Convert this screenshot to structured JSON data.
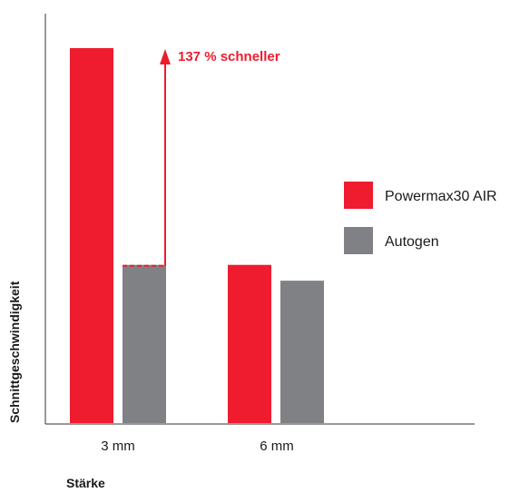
{
  "chart_data": {
    "type": "bar",
    "title": "",
    "xlabel": "Stärke",
    "ylabel": "Schnittgeschwindigkeit",
    "categories": [
      "3 mm",
      "6 mm"
    ],
    "series": [
      {
        "name": "Powermax30 AIR",
        "color": "#ee1c2e",
        "values": [
          2.37,
          1.0
        ]
      },
      {
        "name": "Autogen",
        "color": "#808184",
        "values": [
          1.0,
          0.9
        ]
      }
    ],
    "ylim": [
      0,
      2.6
    ],
    "grid": false,
    "legend_position": "right",
    "annotation": {
      "text": "137 % schneller",
      "category": "3 mm",
      "color": "#ee1c2e"
    }
  }
}
